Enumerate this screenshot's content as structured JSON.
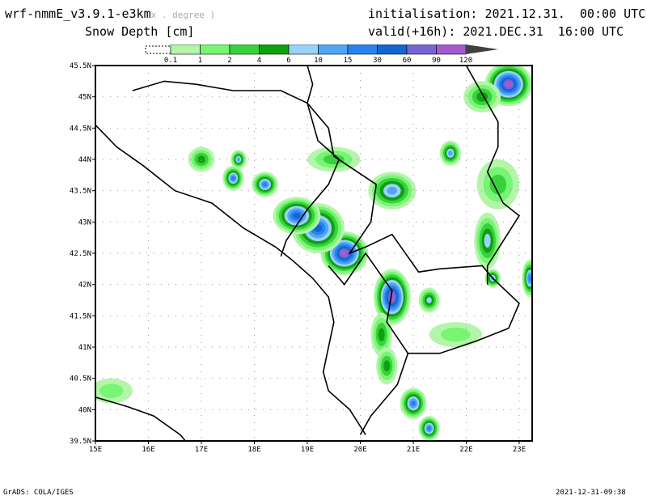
{
  "header": {
    "model": "wrf-nmmE_v3.9.1-e3km",
    "unit_hint": "x . degree )",
    "field": "Snow Depth [cm]",
    "initialisation": "initialisation: 2021.12.31.  00:00 UTC",
    "valid": "valid(+16h): 2021.DEC.31  16:00 UTC"
  },
  "legend": {
    "labels": [
      "0.1",
      "1",
      "2",
      "4",
      "6",
      "10",
      "15",
      "30",
      "60",
      "90",
      "120"
    ],
    "colors": [
      "#b4f5aa",
      "#78f573",
      "#37d23c",
      "#0fa00f",
      "#96d2fa",
      "#50a5f5",
      "#2882f0",
      "#1464d2",
      "#7864d2",
      "#a55ad2"
    ],
    "overflow_color": "#404040"
  },
  "map": {
    "lon_labels": [
      "15E",
      "16E",
      "17E",
      "18E",
      "19E",
      "20E",
      "21E",
      "22E",
      "23E"
    ],
    "lat_labels": [
      "45.5N",
      "45N",
      "44.5N",
      "44N",
      "43.5N",
      "43N",
      "42.5N",
      "42N",
      "41.5N",
      "41N",
      "40.5N",
      "40N",
      "39.5N"
    ],
    "lon_range": [
      15,
      23.25
    ],
    "lat_range": [
      39.5,
      45.5
    ],
    "snow_patches": [
      {
        "lon": 22.8,
        "lat": 45.2,
        "rx": 0.45,
        "ry": 0.35,
        "level": 9
      },
      {
        "lon": 22.3,
        "lat": 45.0,
        "rx": 0.35,
        "ry": 0.25,
        "level": 3
      },
      {
        "lon": 19.7,
        "lat": 42.5,
        "rx": 0.45,
        "ry": 0.35,
        "level": 9
      },
      {
        "lon": 19.2,
        "lat": 42.9,
        "rx": 0.5,
        "ry": 0.4,
        "level": 7
      },
      {
        "lon": 18.8,
        "lat": 43.1,
        "rx": 0.45,
        "ry": 0.3,
        "level": 7
      },
      {
        "lon": 20.6,
        "lat": 41.8,
        "rx": 0.35,
        "ry": 0.45,
        "level": 9
      },
      {
        "lon": 20.4,
        "lat": 41.2,
        "rx": 0.2,
        "ry": 0.35,
        "level": 3
      },
      {
        "lon": 20.5,
        "lat": 40.7,
        "rx": 0.2,
        "ry": 0.3,
        "level": 3
      },
      {
        "lon": 21.0,
        "lat": 40.1,
        "rx": 0.25,
        "ry": 0.25,
        "level": 6
      },
      {
        "lon": 21.3,
        "lat": 39.7,
        "rx": 0.2,
        "ry": 0.2,
        "level": 6
      },
      {
        "lon": 18.2,
        "lat": 43.6,
        "rx": 0.25,
        "ry": 0.2,
        "level": 6
      },
      {
        "lon": 17.6,
        "lat": 43.7,
        "rx": 0.2,
        "ry": 0.2,
        "level": 6
      },
      {
        "lon": 17.7,
        "lat": 44.0,
        "rx": 0.15,
        "ry": 0.15,
        "level": 5
      },
      {
        "lon": 17.0,
        "lat": 44.0,
        "rx": 0.25,
        "ry": 0.2,
        "level": 3
      },
      {
        "lon": 20.6,
        "lat": 43.5,
        "rx": 0.45,
        "ry": 0.3,
        "level": 5
      },
      {
        "lon": 21.7,
        "lat": 44.1,
        "rx": 0.2,
        "ry": 0.2,
        "level": 5
      },
      {
        "lon": 22.4,
        "lat": 42.7,
        "rx": 0.25,
        "ry": 0.45,
        "level": 4
      },
      {
        "lon": 22.5,
        "lat": 42.1,
        "rx": 0.15,
        "ry": 0.15,
        "level": 5
      },
      {
        "lon": 23.2,
        "lat": 42.1,
        "rx": 0.15,
        "ry": 0.3,
        "level": 6
      },
      {
        "lon": 21.3,
        "lat": 41.75,
        "rx": 0.2,
        "ry": 0.2,
        "level": 4
      },
      {
        "lon": 19.5,
        "lat": 44.0,
        "rx": 0.5,
        "ry": 0.2,
        "level": 2
      },
      {
        "lon": 22.6,
        "lat": 43.6,
        "rx": 0.4,
        "ry": 0.4,
        "level": 2
      },
      {
        "lon": 21.8,
        "lat": 41.2,
        "rx": 0.5,
        "ry": 0.2,
        "level": 1
      },
      {
        "lon": 15.3,
        "lat": 40.3,
        "rx": 0.4,
        "ry": 0.2,
        "level": 1
      }
    ]
  },
  "footer": {
    "left": "GrADS: COLA/IGES",
    "right": "2021-12-31-09:38"
  }
}
